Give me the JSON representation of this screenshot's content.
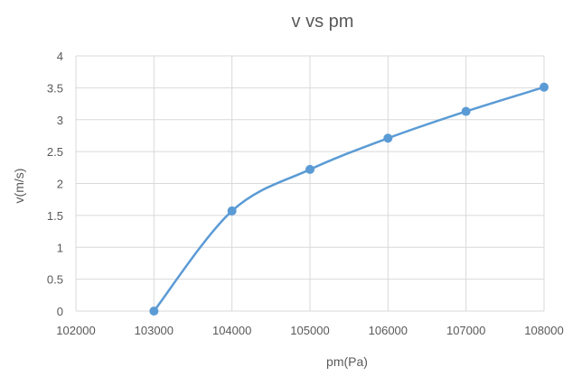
{
  "chart_data": {
    "type": "line",
    "title": "v vs pm",
    "xlabel": "pm(Pa)",
    "ylabel": "v(m/s)",
    "xlim": [
      102000,
      108000
    ],
    "ylim": [
      0,
      4
    ],
    "xticks": [
      102000,
      103000,
      104000,
      105000,
      106000,
      107000,
      108000
    ],
    "yticks": [
      0,
      0.5,
      1,
      1.5,
      2,
      2.5,
      3,
      3.5,
      4
    ],
    "grid": true,
    "legend": "none",
    "smooth": true,
    "series": [
      {
        "color": "#5b9bd5",
        "x": [
          103000,
          104000,
          105000,
          106000,
          107000,
          108000
        ],
        "y": [
          0,
          1.57,
          2.22,
          2.71,
          3.13,
          3.51
        ]
      }
    ]
  }
}
